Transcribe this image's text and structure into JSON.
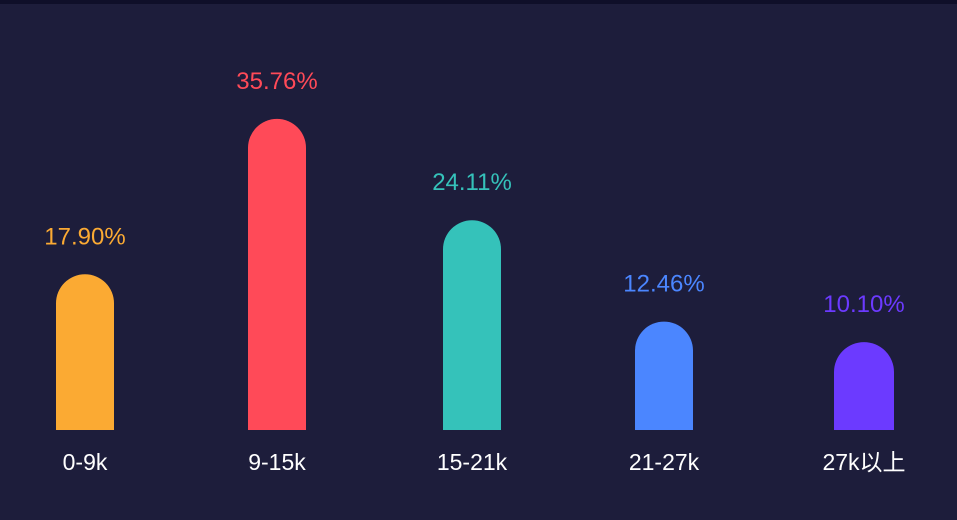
{
  "chart_data": {
    "type": "bar",
    "categories": [
      "0-9k",
      "9-15k",
      "15-21k",
      "21-27k",
      "27k以上"
    ],
    "values": [
      17.9,
      35.76,
      24.11,
      12.46,
      10.1
    ],
    "labels": [
      "17.90%",
      "35.76%",
      "24.11%",
      "12.46%",
      "10.10%"
    ],
    "colors": [
      "#FBAA33",
      "#FF4A58",
      "#35C2BA",
      "#4B86FF",
      "#6C3AFF"
    ],
    "title": "",
    "xlabel": "",
    "ylabel": "",
    "grid": false,
    "legend": "none",
    "ylim": [
      0,
      40
    ]
  }
}
